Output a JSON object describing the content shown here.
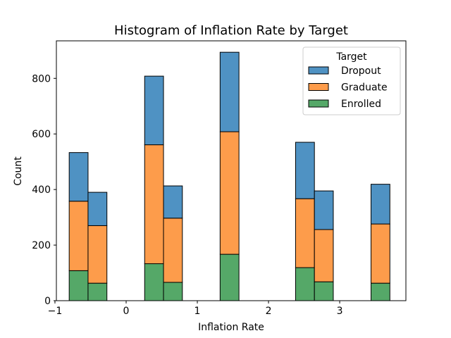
{
  "chart_data": {
    "type": "bar",
    "stacked": true,
    "title": "Histogram of Inflation Rate by Target",
    "xlabel": "Inflation Rate",
    "ylabel": "Count",
    "xlim": [
      -0.98,
      3.93
    ],
    "ylim": [
      0,
      935
    ],
    "xticks": [
      -1,
      0,
      1,
      2,
      3
    ],
    "xtick_labels": [
      "−1",
      "0",
      "1",
      "2",
      "3"
    ],
    "yticks": [
      0,
      200,
      400,
      600,
      800
    ],
    "yticks_labels": [
      "0",
      "200",
      "400",
      "600",
      "800"
    ],
    "grid": false,
    "legend": {
      "title": "Target",
      "placement": "top-right",
      "entries": [
        "Dropout",
        "Graduate",
        "Enrolled"
      ]
    },
    "bin_edges": [
      -0.8,
      -0.535,
      -0.27,
      -0.005,
      0.26,
      0.525,
      0.79,
      1.055,
      1.32,
      1.585,
      1.85,
      2.115,
      2.38,
      2.645,
      2.91,
      3.175,
      3.44,
      3.705
    ],
    "series": [
      {
        "name": "Enrolled",
        "color": "#55a868",
        "values": [
          108,
          63,
          0,
          0,
          133,
          66,
          0,
          0,
          167,
          0,
          0,
          0,
          119,
          68,
          0,
          0,
          63
        ]
      },
      {
        "name": "Graduate",
        "color": "#fd9c4b",
        "values": [
          250,
          207,
          0,
          0,
          428,
          231,
          0,
          0,
          441,
          0,
          0,
          0,
          248,
          188,
          0,
          0,
          213
        ]
      },
      {
        "name": "Dropout",
        "color": "#4f92c3",
        "values": [
          175,
          120,
          0,
          0,
          247,
          116,
          0,
          0,
          286,
          0,
          0,
          0,
          203,
          139,
          0,
          0,
          143
        ]
      }
    ]
  }
}
